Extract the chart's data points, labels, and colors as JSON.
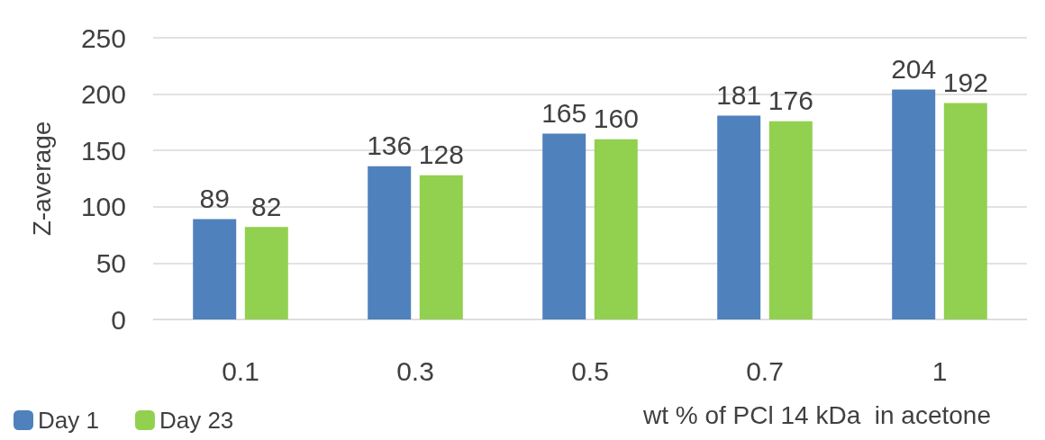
{
  "chart_data": {
    "type": "bar",
    "xlabel": "wt % of PCl 14 kDa  in acetone",
    "ylabel": "Z-average",
    "categories": [
      "0.1",
      "0.3",
      "0.5",
      "0.7",
      "1"
    ],
    "series": [
      {
        "name": "Day 1",
        "color": "#4f81bd",
        "values": [
          89,
          136,
          165,
          181,
          204
        ]
      },
      {
        "name": "Day 23",
        "color": "#92d050",
        "values": [
          82,
          128,
          160,
          176,
          192
        ]
      }
    ],
    "ylim": [
      0,
      250
    ],
    "yticks": [
      0,
      50,
      100,
      150,
      200,
      250
    ],
    "grid": "y",
    "legend": "bottom left",
    "data_labels": true
  }
}
